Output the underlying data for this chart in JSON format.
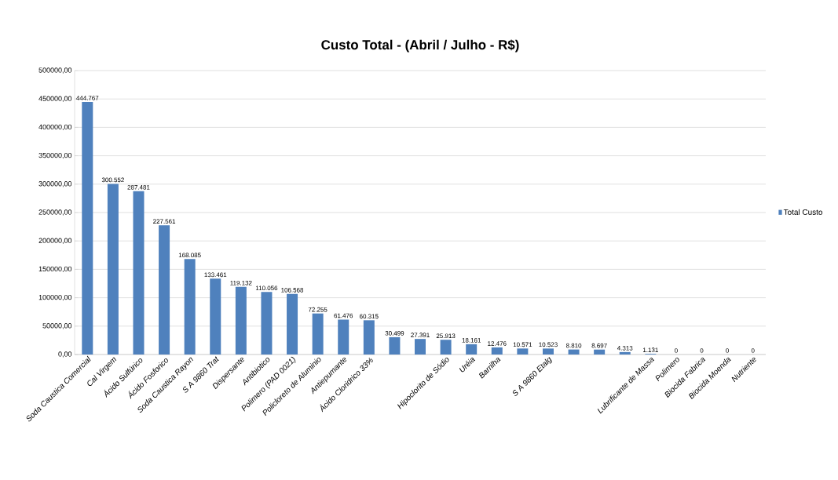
{
  "chart_data": {
    "type": "bar",
    "title": "Custo Total - (Abril / Julho - R$)",
    "categories": [
      "Soda Caustica Comercial",
      "Cal Virgem",
      "Ácido Sulfúrico",
      "Ácido Fosforico",
      "Soda Caustica Rayon",
      "S A 9860 Trat",
      "Dispersante",
      "Antibiotico",
      "Polimero (PAD 0021)",
      "Policloreto de Aluminio",
      "Antiepumante",
      "Ácido Cloridrico 33%",
      null,
      null,
      "Hipoclorito de Sódio",
      "Uréia",
      "Barrilha",
      null,
      "S A 9860 Etalg",
      null,
      null,
      null,
      "Lubrificante de Massa",
      "Polimero",
      "Biocida Fabrica",
      "Biocida Moenda",
      "Nutriente"
    ],
    "series": [
      {
        "name": "Total Custo",
        "color": "#4f81bd",
        "values": [
          444767,
          300552,
          287481,
          227561,
          168085,
          133461,
          119132,
          110056,
          106568,
          72255,
          61476,
          60315,
          30499,
          27391,
          25913,
          18161,
          12476,
          10571,
          10523,
          8810,
          8697,
          4313,
          1131,
          0,
          0,
          0,
          0
        ],
        "value_labels": [
          "444.767",
          "300.552",
          "287.481",
          "227.561",
          "168.085",
          "133.461",
          "119.132",
          "110.056",
          "106.568",
          "72.255",
          "61.476",
          "60.315",
          "30.499",
          "27.391",
          "25.913",
          "18.161",
          "12.476",
          "10.571",
          "10.523",
          "8.810",
          "8.697",
          "4.313",
          "1.131",
          "0",
          "0",
          "0",
          "0"
        ]
      }
    ],
    "ylim": [
      0,
      500000
    ],
    "yticks": [
      {
        "value": 0,
        "label": "0,00"
      },
      {
        "value": 50000,
        "label": "50000,00"
      },
      {
        "value": 100000,
        "label": "100000,00"
      },
      {
        "value": 150000,
        "label": "150000,00"
      },
      {
        "value": 200000,
        "label": "200000,00"
      },
      {
        "value": 250000,
        "label": "250000,00"
      },
      {
        "value": 300000,
        "label": "300000,00"
      },
      {
        "value": 350000,
        "label": "350000,00"
      },
      {
        "value": 400000,
        "label": "400000,00"
      },
      {
        "value": 450000,
        "label": "450000,00"
      },
      {
        "value": 500000,
        "label": "500000,00"
      }
    ],
    "grid": "y",
    "legend": "right"
  }
}
